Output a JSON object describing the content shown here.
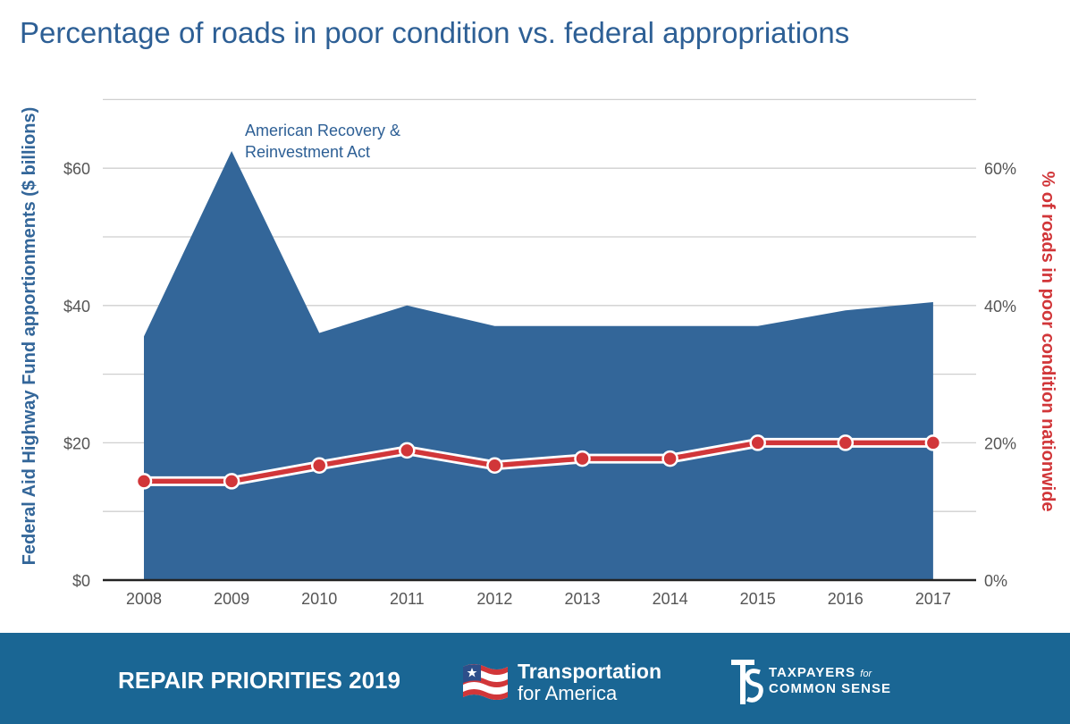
{
  "chart_data": {
    "type": "area",
    "title": "Percentage of roads in poor condition vs. federal appropriations",
    "categories": [
      "2008",
      "2009",
      "2010",
      "2011",
      "2012",
      "2013",
      "2014",
      "2015",
      "2016",
      "2017"
    ],
    "series": [
      {
        "name": "Federal Aid Highway Fund apportionments ($ billions)",
        "type": "area",
        "axis": "left",
        "values": [
          35.5,
          62.5,
          36.0,
          40.0,
          37.0,
          37.0,
          37.0,
          37.0,
          39.3,
          40.5
        ],
        "color": "#336699"
      },
      {
        "name": "% of roads in poor condition nationwide",
        "type": "line",
        "axis": "right",
        "values": [
          14.4,
          14.4,
          16.7,
          18.9,
          16.7,
          17.7,
          17.7,
          20.0,
          20.0,
          20.0
        ],
        "color": "#d13639"
      }
    ],
    "y_left": {
      "label": "Federal Aid Highway Fund apportionments ($ billions)",
      "ylim": [
        0,
        70
      ],
      "ticks": [
        0,
        20,
        40,
        60
      ],
      "tick_labels": [
        "$0",
        "$20",
        "$40",
        "$60"
      ]
    },
    "y_right": {
      "label": "% of roads in poor condition nationwide",
      "ylim": [
        0,
        70
      ],
      "ticks": [
        0,
        20,
        40,
        60
      ],
      "tick_labels": [
        "0%",
        "20%",
        "40%",
        "60%"
      ]
    },
    "gridlines": [
      10,
      20,
      30,
      40,
      50,
      60,
      70
    ],
    "annotations": [
      {
        "text_lines": [
          "American Recovery &",
          "Reinvestment Act"
        ],
        "category": "2009"
      }
    ],
    "grid": true,
    "legend": "none"
  },
  "footer": {
    "title": "REPAIR PRIORITIES 2019",
    "logos": {
      "transportation": {
        "name": "Transportation",
        "sub": "for America"
      },
      "taxpayers": {
        "line1": "TAXPAYERS",
        "for": "for",
        "line2": "COMMON SENSE"
      }
    }
  },
  "colors": {
    "title": "#2d5f95",
    "area": "#336699",
    "line": "#d13639",
    "footer": "#1a6694",
    "grid": "#cfcfcf",
    "axis_text": "#555555"
  }
}
